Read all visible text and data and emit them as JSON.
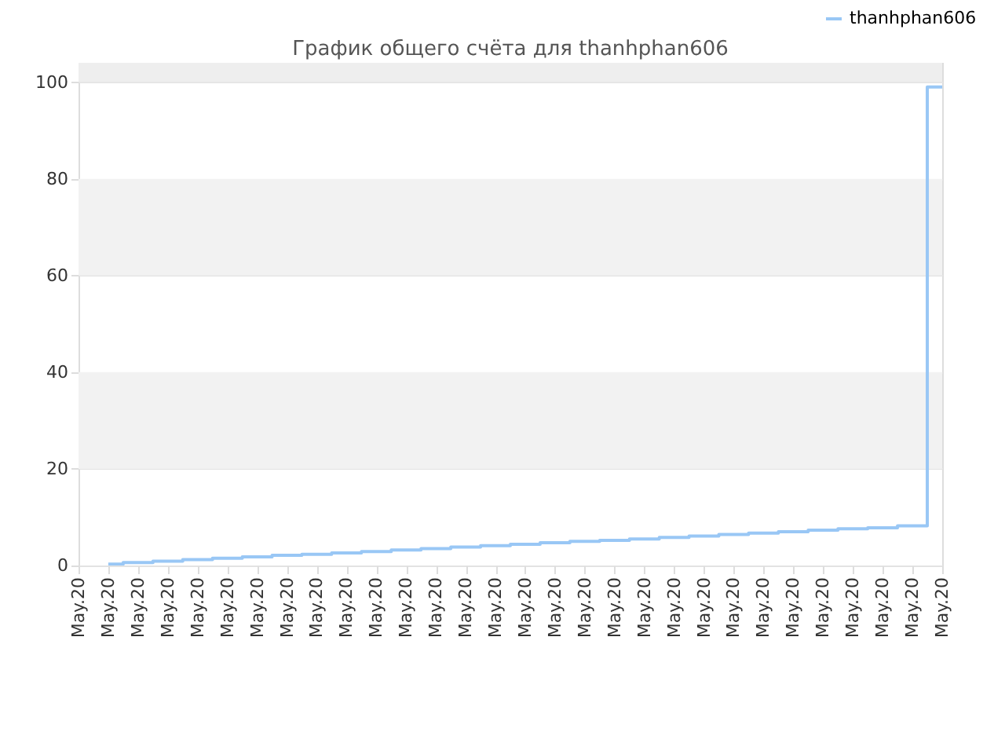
{
  "chart_data": {
    "type": "step",
    "title": "График общего счёта для thanhphan606",
    "categories": [
      "May.20",
      "May.20",
      "May.20",
      "May.20",
      "May.20",
      "May.20",
      "May.20",
      "May.20",
      "May.20",
      "May.20",
      "May.20",
      "May.20",
      "May.20",
      "May.20",
      "May.20",
      "May.20",
      "May.20",
      "May.20",
      "May.20",
      "May.20",
      "May.20",
      "May.20",
      "May.20",
      "May.20",
      "May.20",
      "May.20",
      "May.20",
      "May.20",
      "May.20",
      "May.20"
    ],
    "series": [
      {
        "name": "thanhphan606",
        "color": "#99c7f5",
        "values": [
          null,
          0.3,
          0.6,
          0.9,
          1.2,
          1.5,
          1.8,
          2.1,
          2.3,
          2.6,
          2.9,
          3.2,
          3.5,
          3.8,
          4.1,
          4.4,
          4.7,
          5.0,
          5.2,
          5.5,
          5.8,
          6.1,
          6.4,
          6.7,
          7.0,
          7.3,
          7.6,
          7.8,
          8.2,
          99
        ]
      }
    ],
    "ylim": [
      0,
      104
    ],
    "yticks": [
      0,
      20,
      40,
      60,
      80,
      100
    ],
    "bands": [
      {
        "axis": "y",
        "from": 20,
        "to": 40,
        "color": "#f2f2f2"
      },
      {
        "axis": "y",
        "from": 60,
        "to": 80,
        "color": "#f2f2f2"
      },
      {
        "axis": "y",
        "from": 100,
        "to": 104,
        "color": "#eeeeee"
      }
    ],
    "grid": "y",
    "legend": "top right"
  }
}
